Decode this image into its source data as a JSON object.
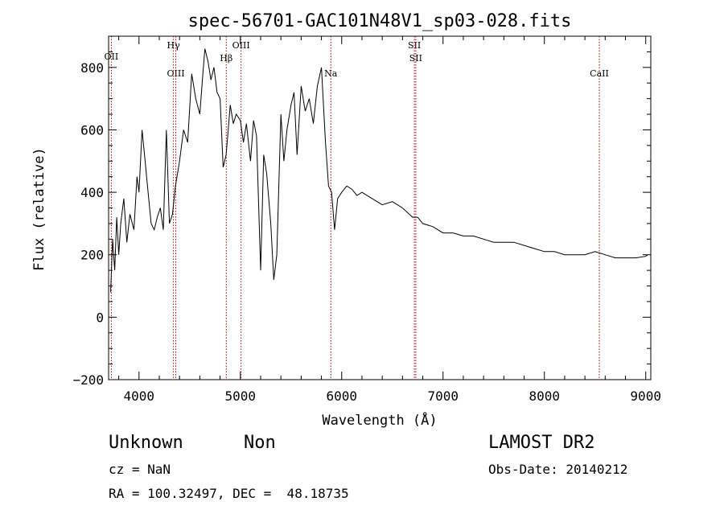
{
  "chart_data": {
    "type": "line",
    "title": "spec-56701-GAC101N48V1_sp03-028.fits",
    "xlabel": "Wavelength (Å)",
    "ylabel": "Flux (relative)",
    "xlim": [
      3700,
      9050
    ],
    "ylim": [
      -200,
      900
    ],
    "xticks": [
      4000,
      5000,
      6000,
      7000,
      8000,
      9000
    ],
    "yticks": [
      -200,
      0,
      200,
      400,
      600,
      800
    ],
    "xtick_labels": [
      "4000",
      "5000",
      "6000",
      "7000",
      "8000",
      "9000"
    ],
    "ytick_labels": [
      "−200",
      "0",
      "200",
      "400",
      "600",
      "800"
    ],
    "line_color": "#000000",
    "marker_color": "#aa0000",
    "grid": false,
    "series": [
      {
        "x": [
          3720,
          3740,
          3760,
          3780,
          3800,
          3820,
          3850,
          3880,
          3910,
          3950,
          3980,
          4000,
          4030,
          4060,
          4090,
          4120,
          4150,
          4180,
          4210,
          4240,
          4270,
          4300,
          4330,
          4360,
          4400,
          4440,
          4480,
          4520,
          4560,
          4600,
          4630,
          4650,
          4680,
          4710,
          4740,
          4770,
          4800,
          4830,
          4860,
          4880,
          4900,
          4930,
          4960,
          5000,
          5030,
          5060,
          5100,
          5130,
          5160,
          5200,
          5230,
          5260,
          5300,
          5330,
          5360,
          5400,
          5430,
          5460,
          5500,
          5530,
          5560,
          5600,
          5640,
          5680,
          5720,
          5760,
          5800,
          5840,
          5870,
          5900,
          5930,
          5960,
          6000,
          6050,
          6100,
          6150,
          6200,
          6300,
          6400,
          6500,
          6600,
          6700,
          6750,
          6800,
          6900,
          7000,
          7100,
          7200,
          7300,
          7400,
          7500,
          7600,
          7700,
          7800,
          7900,
          8000,
          8100,
          8200,
          8300,
          8400,
          8500,
          8600,
          8700,
          8800,
          8900,
          9000,
          9020
        ],
        "y": [
          80,
          250,
          150,
          320,
          200,
          300,
          380,
          240,
          330,
          280,
          450,
          400,
          600,
          500,
          400,
          300,
          280,
          320,
          350,
          280,
          600,
          300,
          330,
          420,
          500,
          600,
          560,
          780,
          700,
          650,
          780,
          860,
          820,
          760,
          800,
          720,
          700,
          480,
          520,
          600,
          680,
          620,
          650,
          630,
          560,
          620,
          500,
          630,
          580,
          150,
          520,
          460,
          300,
          120,
          200,
          650,
          500,
          600,
          680,
          720,
          520,
          740,
          660,
          700,
          620,
          740,
          800,
          560,
          420,
          400,
          280,
          380,
          400,
          420,
          410,
          390,
          400,
          380,
          360,
          370,
          350,
          320,
          320,
          300,
          290,
          270,
          270,
          260,
          260,
          250,
          240,
          240,
          240,
          230,
          220,
          210,
          210,
          200,
          200,
          200,
          210,
          200,
          190,
          190,
          190,
          195,
          200
        ]
      }
    ],
    "lines": [
      {
        "label": "OII",
        "x": 3727
      },
      {
        "label": "OIII",
        "x": 4363
      },
      {
        "label": "Hγ",
        "x": 4340
      },
      {
        "label": "Hβ",
        "x": 4861
      },
      {
        "label": "OIII",
        "x": 5007
      },
      {
        "label": "Na",
        "x": 5893
      },
      {
        "label": "SII",
        "x": 6717
      },
      {
        "label": "SII",
        "x": 6731
      },
      {
        "label": "CaII",
        "x": 8542
      }
    ]
  },
  "info": {
    "object_type": "Unknown",
    "subclass": "Non",
    "survey": "LAMOST DR2",
    "cz": "cz = NaN",
    "obs_date": "Obs-Date: 20140212",
    "coords": "RA = 100.32497, DEC =  48.18735"
  }
}
